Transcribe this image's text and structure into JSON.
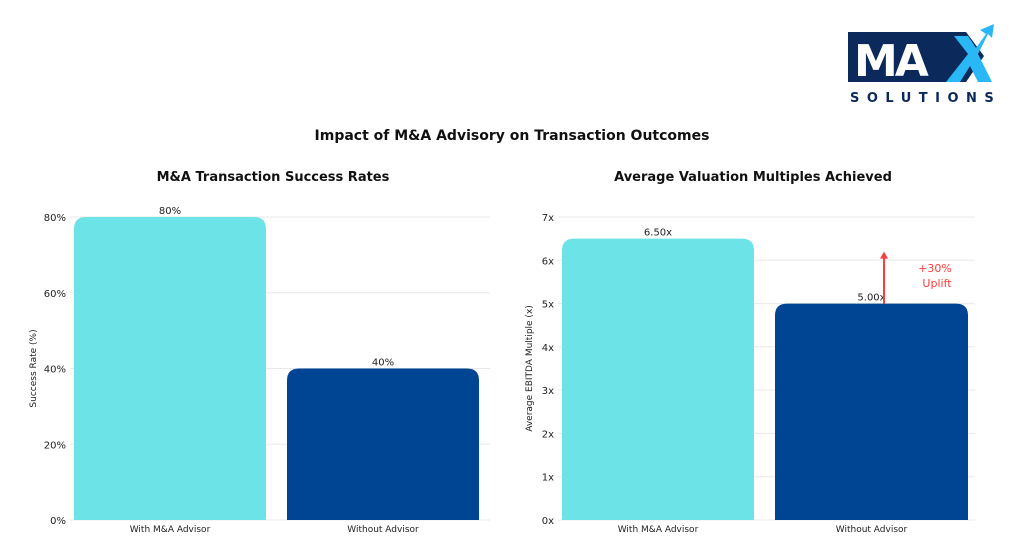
{
  "logo": {
    "text": "MAX",
    "subtext": "SOLUTIONS"
  },
  "main_title": "Impact of M&A Advisory on Transaction Outcomes",
  "colors": {
    "with": "#6ce3e6",
    "without": "#004494",
    "annotation": "#ff3b3b",
    "logo_dark": "#0b2a5b",
    "logo_light": "#29b8f5"
  },
  "chart_data": [
    {
      "type": "bar",
      "title": "M&A Transaction Success Rates",
      "xlabel": "",
      "ylabel": "Success Rate (%)",
      "categories": [
        "With M&A Advisor",
        "Without Advisor"
      ],
      "values": [
        80,
        40
      ],
      "data_labels": [
        "80%",
        "40%"
      ],
      "ylim": [
        0,
        80
      ],
      "yticks": [
        0,
        20,
        40,
        60,
        80
      ],
      "ytick_labels": [
        "0%",
        "20%",
        "40%",
        "60%",
        "80%"
      ],
      "grid": true
    },
    {
      "type": "bar",
      "title": "Average Valuation Multiples Achieved",
      "xlabel": "",
      "ylabel": "Average EBITDA Multiple (x)",
      "categories": [
        "With M&A Advisor",
        "Without Advisor"
      ],
      "values": [
        6.5,
        5.0
      ],
      "data_labels": [
        "6.50x",
        "5.00x"
      ],
      "ylim": [
        0,
        7
      ],
      "yticks": [
        0,
        1,
        2,
        3,
        4,
        5,
        6,
        7
      ],
      "ytick_labels": [
        "0x",
        "1x",
        "2x",
        "3x",
        "4x",
        "5x",
        "6x",
        "7x"
      ],
      "grid": true,
      "annotation": {
        "text_line1": "+30%",
        "text_line2": "Uplift",
        "arrow_from": 5.0,
        "arrow_to": 6.2
      }
    }
  ]
}
